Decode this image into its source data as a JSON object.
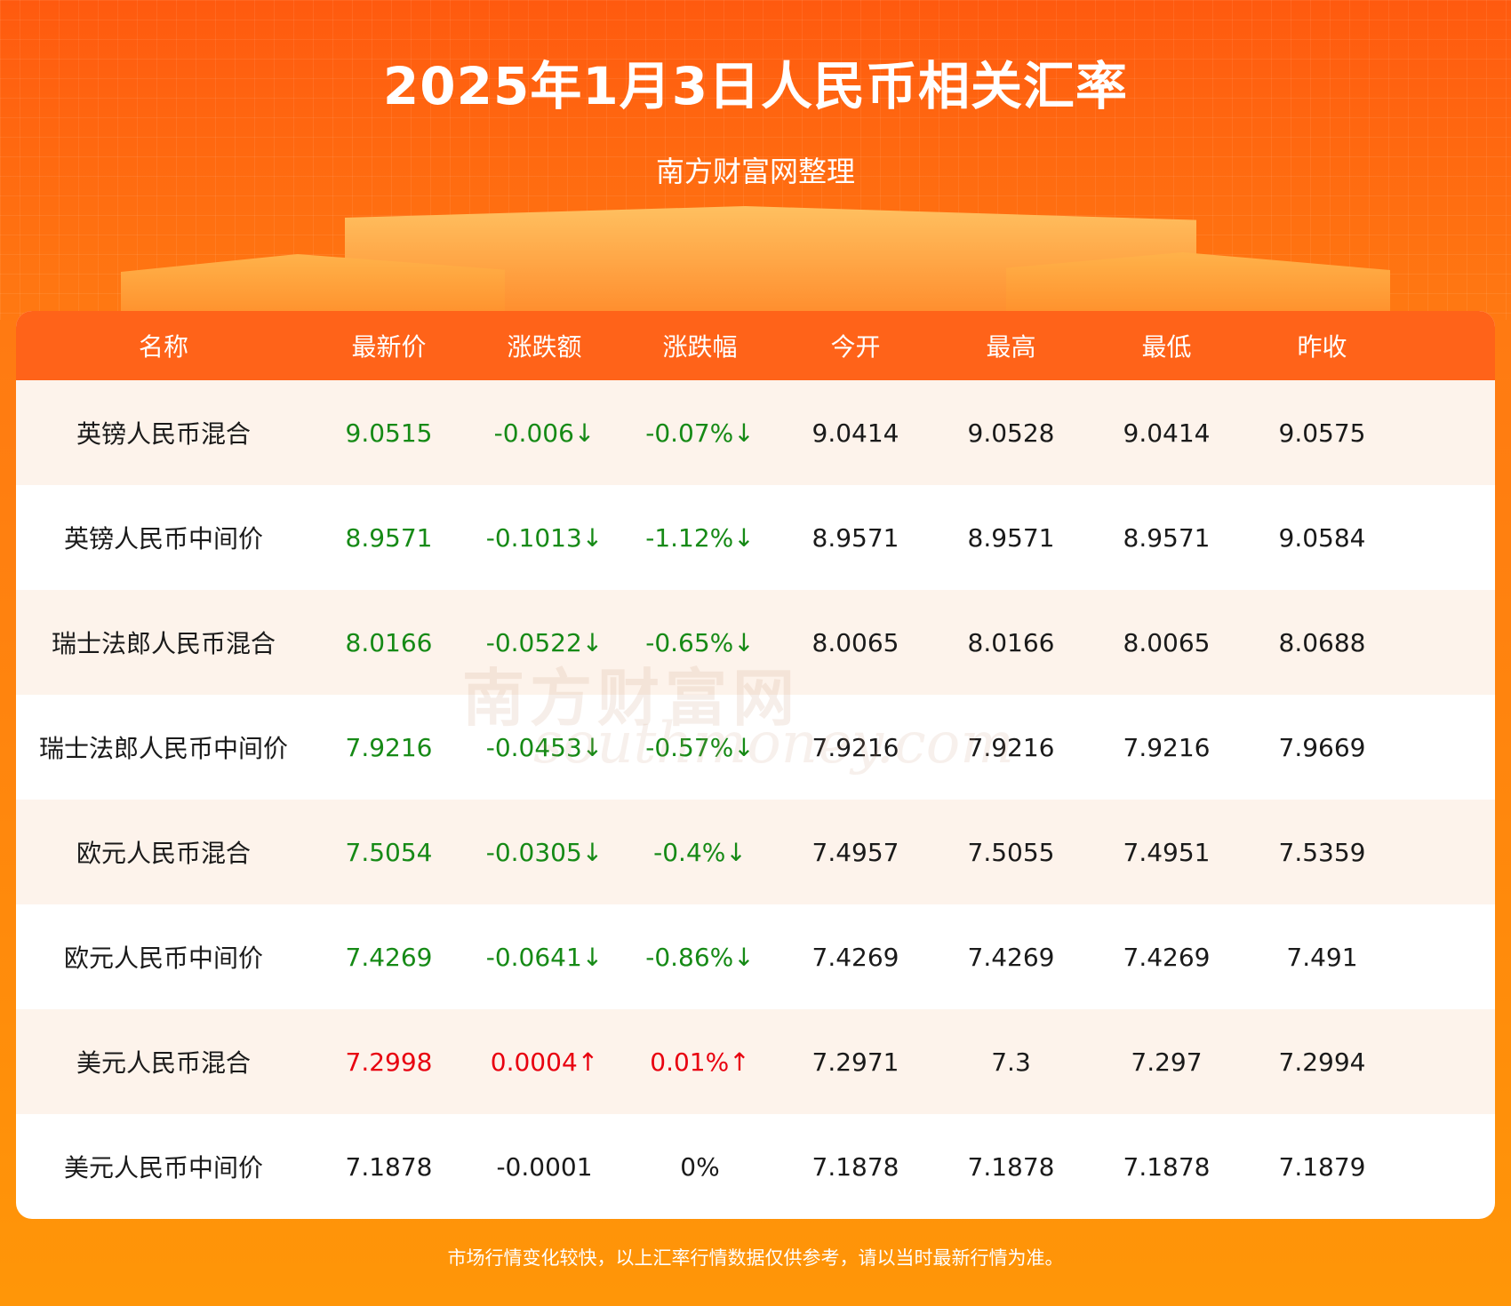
{
  "title": "2025年1月3日人民币相关汇率",
  "subtitle": "南方财富网整理",
  "watermark": "南方财富网 southmoney.com",
  "colors": {
    "up": "#e8000f",
    "down": "#168a16",
    "header": "#ff6319"
  },
  "table": {
    "headers": [
      "名称",
      "最新价",
      "涨跌额",
      "涨跌幅",
      "今开",
      "最高",
      "最低",
      "昨收"
    ],
    "rows": [
      {
        "trend": "down",
        "cells": [
          "英镑人民币混合",
          "9.0515",
          "-0.006↓",
          "-0.07%↓",
          "9.0414",
          "9.0528",
          "9.0414",
          "9.0575"
        ]
      },
      {
        "trend": "down",
        "cells": [
          "英镑人民币中间价",
          "8.9571",
          "-0.1013↓",
          "-1.12%↓",
          "8.9571",
          "8.9571",
          "8.9571",
          "9.0584"
        ]
      },
      {
        "trend": "down",
        "cells": [
          "瑞士法郎人民币混合",
          "8.0166",
          "-0.0522↓",
          "-0.65%↓",
          "8.0065",
          "8.0166",
          "8.0065",
          "8.0688"
        ]
      },
      {
        "trend": "down",
        "cells": [
          "瑞士法郎人民币中间价",
          "7.9216",
          "-0.0453↓",
          "-0.57%↓",
          "7.9216",
          "7.9216",
          "7.9216",
          "7.9669"
        ]
      },
      {
        "trend": "down",
        "cells": [
          "欧元人民币混合",
          "7.5054",
          "-0.0305↓",
          "-0.4%↓",
          "7.4957",
          "7.5055",
          "7.4951",
          "7.5359"
        ]
      },
      {
        "trend": "down",
        "cells": [
          "欧元人民币中间价",
          "7.4269",
          "-0.0641↓",
          "-0.86%↓",
          "7.4269",
          "7.4269",
          "7.4269",
          "7.491"
        ]
      },
      {
        "trend": "up",
        "cells": [
          "美元人民币混合",
          "7.2998",
          "0.0004↑",
          "0.01%↑",
          "7.2971",
          "7.3",
          "7.297",
          "7.2994"
        ]
      },
      {
        "trend": "flat",
        "cells": [
          "美元人民币中间价",
          "7.1878",
          "-0.0001",
          "0%",
          "7.1878",
          "7.1878",
          "7.1878",
          "7.1879"
        ]
      }
    ]
  },
  "footer": "市场行情变化较快，以上汇率行情数据仅供参考，请以当时最新行情为准。"
}
